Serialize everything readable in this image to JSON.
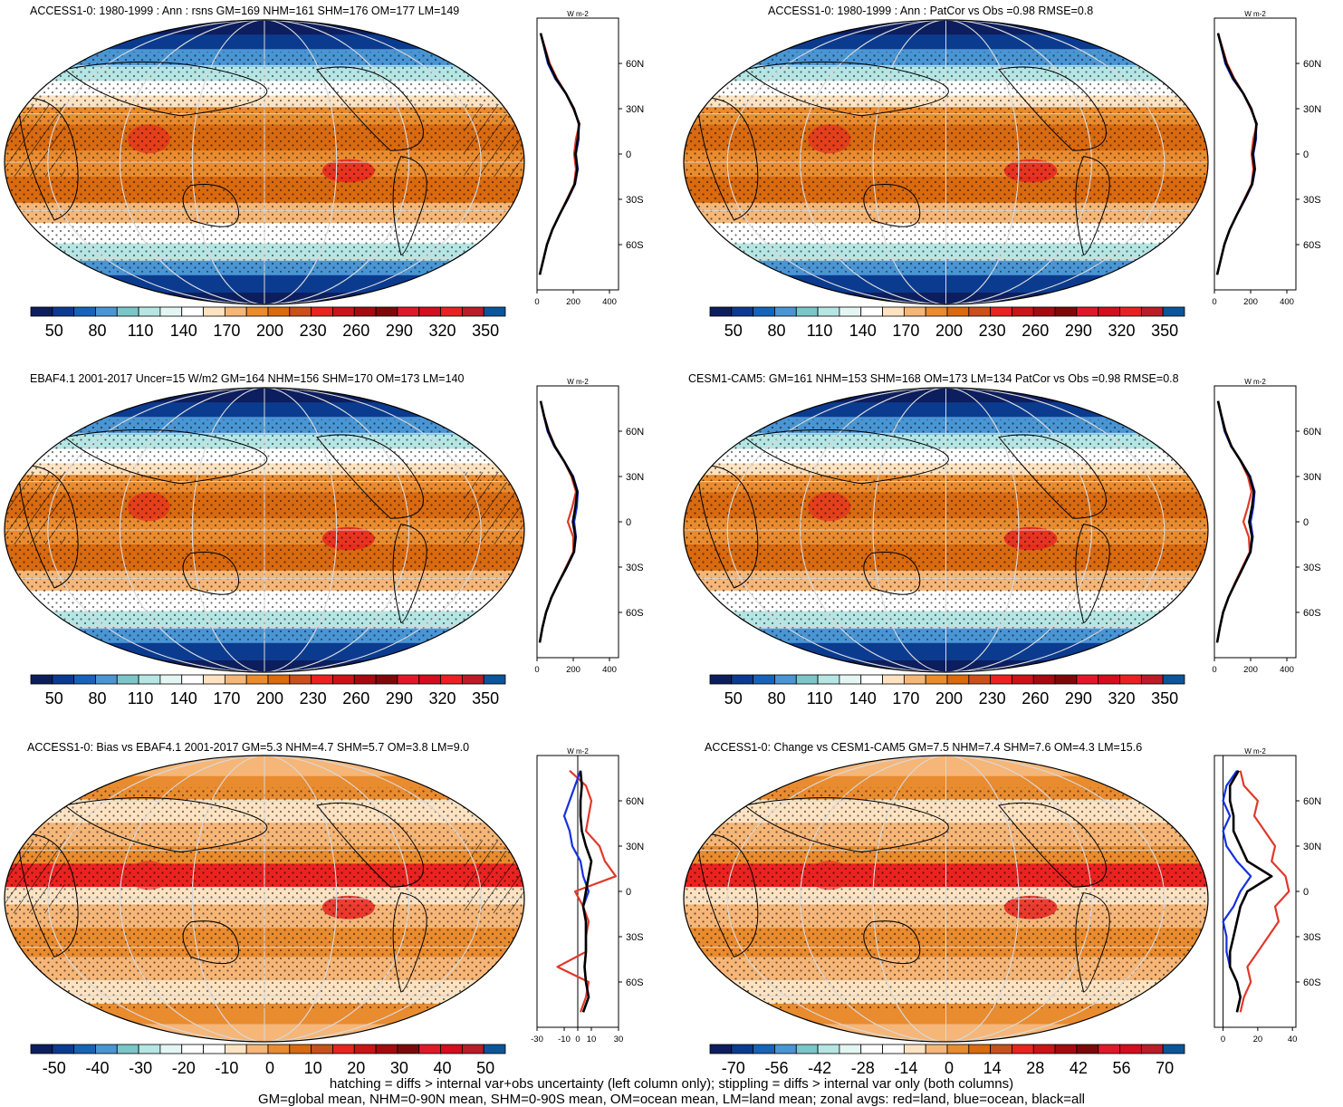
{
  "colors": {
    "abs_palette": [
      "#0d1e5e",
      "#0b3b8f",
      "#1763b8",
      "#4a95d3",
      "#7bc6c8",
      "#b6e6e4",
      "#e4f6f3",
      "#ffffff",
      "#fde3c2",
      "#f5b678",
      "#e98b2f",
      "#d96a10",
      "#c8501c",
      "#e9231f",
      "#cb1417",
      "#a40b10",
      "#7d0a0a",
      "#e0192a",
      "#d40d1f",
      "#e82223",
      "#ba1c28",
      "#0b5599"
    ],
    "diff_palette": [
      "#0d1e5e",
      "#0b3b8f",
      "#1763b8",
      "#4a95d3",
      "#7bc6c8",
      "#b6e6e4",
      "#e4f6f3",
      "#ffffff",
      "#ffffff",
      "#fde3c2",
      "#f5b678",
      "#e98b2f",
      "#d96a10",
      "#c8501c",
      "#e9231f",
      "#cb1417",
      "#a40b10",
      "#7d0a0a",
      "#e0192a",
      "#d40d1f",
      "#ba1c28",
      "#0b5599"
    ],
    "land": "#e0392a",
    "ocean": "#1530e0",
    "all": "#000000"
  },
  "panels": [
    {
      "id": "p1",
      "title": "ACCESS1-0: 1980-1999 : Ann : rsns GM=169 NHM=161 SHM=176 OM=177 LM=149",
      "kind": "abs",
      "hatching": true,
      "zonal_xticks": [
        "0",
        "200",
        "400"
      ],
      "zonal_xrange": [
        0,
        450
      ],
      "colorbar_labels": [
        "50",
        "80",
        "110",
        "140",
        "170",
        "200",
        "230",
        "260",
        "290",
        "320",
        "350"
      ]
    },
    {
      "id": "p2",
      "title": "ACCESS1-0: 1980-1999 : Ann : PatCor vs Obs =0.98 RMSE=0.8",
      "kind": "abs",
      "hatching": false,
      "zonal_xticks": [
        "0",
        "200",
        "400"
      ],
      "zonal_xrange": [
        0,
        450
      ],
      "colorbar_labels": [
        "50",
        "80",
        "110",
        "140",
        "170",
        "200",
        "230",
        "260",
        "290",
        "320",
        "350"
      ]
    },
    {
      "id": "p3",
      "title": "EBAF4.1 2001-2017 Uncer=15 W/m2 GM=164 NHM=156 SHM=170 OM=173 LM=140",
      "kind": "abs",
      "hatching": true,
      "zonal_xticks": [
        "0",
        "200",
        "400"
      ],
      "zonal_xrange": [
        0,
        450
      ],
      "colorbar_labels": [
        "50",
        "80",
        "110",
        "140",
        "170",
        "200",
        "230",
        "260",
        "290",
        "320",
        "350"
      ]
    },
    {
      "id": "p4",
      "title": "CESM1-CAM5: GM=161 NHM=153 SHM=168 OM=173 LM=134 PatCor vs Obs =0.98 RMSE=0.8",
      "kind": "abs",
      "hatching": false,
      "zonal_xticks": [
        "0",
        "200",
        "400"
      ],
      "zonal_xrange": [
        0,
        450
      ],
      "colorbar_labels": [
        "50",
        "80",
        "110",
        "140",
        "170",
        "200",
        "230",
        "260",
        "290",
        "320",
        "350"
      ]
    },
    {
      "id": "p5",
      "title": "ACCESS1-0: Bias vs EBAF4.1 2001-2017 GM=5.3 NHM=4.7 SHM=5.7 OM=3.8 LM=9.0",
      "kind": "diff",
      "hatching": true,
      "zonal_xticks": [
        "-30",
        "-10",
        "0",
        "10",
        "30"
      ],
      "zonal_xrange": [
        -30,
        30
      ],
      "colorbar_labels": [
        "-50",
        "-40",
        "-30",
        "-20",
        "-10",
        "0",
        "10",
        "20",
        "30",
        "40",
        "50"
      ]
    },
    {
      "id": "p6",
      "title": "ACCESS1-0: Change vs CESM1-CAM5 GM=7.5 NHM=7.4 SHM=7.6 OM=4.3 LM=15.6",
      "kind": "diff",
      "hatching": false,
      "zonal_xticks": [
        "0",
        "20",
        "40"
      ],
      "zonal_xrange": [
        -5,
        42
      ],
      "colorbar_labels": [
        "-70",
        "-56",
        "-42",
        "-28",
        "-14",
        "0",
        "14",
        "28",
        "42",
        "56",
        "70"
      ]
    }
  ],
  "zonal_units": "W m-2",
  "lat_ticks": [
    "60N",
    "30N",
    "0",
    "30S",
    "60S"
  ],
  "lat_values": [
    60,
    30,
    0,
    -30,
    -60
  ],
  "chart_data": [
    {
      "type": "heatmap",
      "title": "ACCESS1-0: 1980-1999 : Ann : rsns GM=169 NHM=161 SHM=176 OM=177 LM=149",
      "zonal_mean": {
        "lat": [
          80,
          70,
          60,
          50,
          40,
          30,
          20,
          10,
          0,
          -10,
          -20,
          -30,
          -40,
          -50,
          -60,
          -70,
          -80
        ],
        "series": [
          {
            "name": "land",
            "values": [
              20,
              45,
              70,
              110,
              160,
              200,
              235,
              215,
              205,
              215,
              205,
              165,
              125,
              85,
              55,
              35,
              15
            ]
          },
          {
            "name": "ocean",
            "values": [
              20,
              40,
              60,
              100,
              160,
              205,
              230,
              230,
              215,
              225,
              210,
              170,
              125,
              85,
              55,
              35,
              15
            ]
          },
          {
            "name": "all",
            "values": [
              20,
              42,
              65,
              105,
              160,
              203,
              232,
              225,
              212,
              222,
              208,
              168,
              125,
              85,
              55,
              35,
              15
            ]
          }
        ]
      }
    },
    {
      "type": "heatmap",
      "title": "ACCESS1-0: 1980-1999 : Ann : PatCor vs Obs =0.98 RMSE=0.8",
      "zonal_mean": {
        "lat": [
          80,
          70,
          60,
          50,
          40,
          30,
          20,
          10,
          0,
          -10,
          -20,
          -30,
          -40,
          -50,
          -60,
          -70,
          -80
        ],
        "series": [
          {
            "name": "land",
            "values": [
              20,
              45,
              70,
              110,
              160,
              200,
              235,
              215,
              205,
              215,
              205,
              165,
              125,
              85,
              55,
              35,
              15
            ]
          },
          {
            "name": "ocean",
            "values": [
              20,
              40,
              60,
              100,
              160,
              205,
              230,
              230,
              215,
              225,
              210,
              170,
              125,
              85,
              55,
              35,
              15
            ]
          },
          {
            "name": "all",
            "values": [
              20,
              42,
              65,
              105,
              160,
              203,
              232,
              225,
              212,
              222,
              208,
              168,
              125,
              85,
              55,
              35,
              15
            ]
          }
        ]
      }
    },
    {
      "type": "heatmap",
      "title": "EBAF4.1 2001-2017 Uncer=15 W/m2 GM=164 NHM=156 SHM=170 OM=173 LM=140",
      "zonal_mean": {
        "lat": [
          80,
          70,
          60,
          50,
          40,
          30,
          20,
          10,
          0,
          -10,
          -20,
          -30,
          -40,
          -50,
          -60,
          -70,
          -80
        ],
        "series": [
          {
            "name": "land",
            "values": [
              20,
              40,
              65,
              100,
              150,
              190,
              215,
              195,
              170,
              200,
              200,
              160,
              120,
              80,
              50,
              30,
              15
            ]
          },
          {
            "name": "ocean",
            "values": [
              20,
              38,
              58,
              95,
              150,
              200,
              225,
              220,
              205,
              215,
              205,
              165,
              120,
              80,
              50,
              30,
              15
            ]
          },
          {
            "name": "all",
            "values": [
              20,
              39,
              62,
              98,
              150,
              196,
              222,
              212,
              198,
              212,
              204,
              164,
              120,
              80,
              50,
              30,
              15
            ]
          }
        ]
      }
    },
    {
      "type": "heatmap",
      "title": "CESM1-CAM5: GM=161 NHM=153 SHM=168 OM=173 LM=134 PatCor vs Obs =0.98 RMSE=0.8",
      "zonal_mean": {
        "lat": [
          80,
          70,
          60,
          50,
          40,
          30,
          20,
          10,
          0,
          -10,
          -20,
          -30,
          -40,
          -50,
          -60,
          -70,
          -80
        ],
        "series": [
          {
            "name": "land",
            "values": [
              20,
              40,
              62,
              95,
              145,
              185,
              205,
              185,
              160,
              190,
              195,
              155,
              115,
              78,
              48,
              30,
              15
            ]
          },
          {
            "name": "ocean",
            "values": [
              20,
              38,
              56,
              92,
              148,
              198,
              222,
              215,
              200,
              212,
              200,
              160,
              118,
              78,
              48,
              30,
              15
            ]
          },
          {
            "name": "all",
            "values": [
              20,
              39,
              60,
              94,
              147,
              194,
              218,
              208,
              192,
              208,
              199,
              159,
              118,
              78,
              48,
              30,
              15
            ]
          }
        ]
      }
    },
    {
      "type": "heatmap",
      "title": "ACCESS1-0: Bias vs EBAF4.1 2001-2017 GM=5.3 NHM=4.7 SHM=5.7 OM=3.8 LM=9.0",
      "zonal_mean": {
        "lat": [
          80,
          70,
          60,
          50,
          40,
          30,
          20,
          10,
          0,
          -10,
          -20,
          -30,
          -40,
          -50,
          -60,
          -70,
          -80
        ],
        "series": [
          {
            "name": "land",
            "values": [
              -6,
              6,
              10,
              8,
              6,
              16,
              20,
              28,
              -2,
              4,
              8,
              6,
              6,
              -15,
              8,
              6,
              2
            ]
          },
          {
            "name": "ocean",
            "values": [
              2,
              -2,
              -6,
              -10,
              -6,
              -4,
              2,
              4,
              8,
              4,
              6,
              6,
              6,
              5,
              6,
              8,
              4
            ]
          },
          {
            "name": "all",
            "values": [
              2,
              3,
              2,
              2,
              3,
              6,
              10,
              8,
              6,
              4,
              6,
              6,
              6,
              5,
              6,
              8,
              4
            ]
          }
        ]
      }
    },
    {
      "type": "heatmap",
      "title": "ACCESS1-0: Change vs CESM1-CAM5 GM=7.5 NHM=7.4 SHM=7.6 OM=4.3 LM=15.6",
      "zonal_mean": {
        "lat": [
          80,
          70,
          60,
          50,
          40,
          30,
          20,
          10,
          0,
          -10,
          -20,
          -30,
          -40,
          -50,
          -60,
          -70,
          -80
        ],
        "series": [
          {
            "name": "land",
            "values": [
              10,
              12,
              20,
              18,
              24,
              30,
              28,
              36,
              38,
              30,
              32,
              26,
              20,
              14,
              16,
              12,
              10
            ]
          },
          {
            "name": "ocean",
            "values": [
              8,
              2,
              0,
              4,
              0,
              2,
              8,
              16,
              10,
              6,
              0,
              2,
              2,
              4,
              8,
              10,
              8
            ]
          },
          {
            "name": "all",
            "values": [
              9,
              4,
              4,
              6,
              6,
              10,
              14,
              28,
              14,
              10,
              8,
              6,
              4,
              4,
              8,
              10,
              8
            ]
          }
        ]
      }
    }
  ],
  "footer": {
    "line1": "hatching = diffs > internal var+obs uncertainty (left column only); stippling = diffs > internal var only (both columns)",
    "line2": "GM=global mean, NHM=0-90N mean, SHM=0-90S mean, OM=ocean mean, LM=land mean; zonal avgs: red=land, blue=ocean, black=all"
  }
}
